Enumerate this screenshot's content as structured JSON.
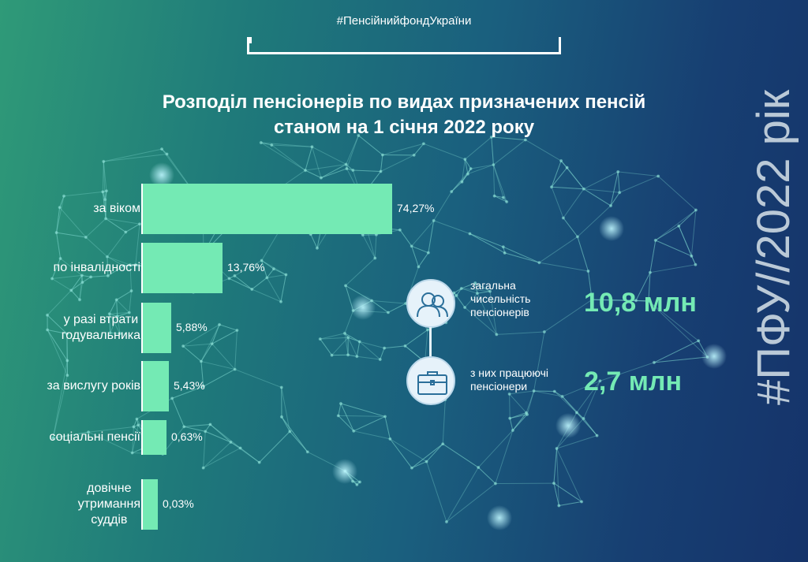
{
  "hashtag": "#ПенсійнийфондУкраїни",
  "title_lines": [
    "Розподіл пенсіонерів по видах призначених пенсій",
    "станом на 1 січня 2022 року"
  ],
  "chart_data": {
    "type": "bar",
    "orientation": "horizontal",
    "title": "Розподіл пенсіонерів по видах призначених пенсій станом на 1 січня 2022 року",
    "categories": [
      "за віком",
      "по інвалідності",
      "у разі втрати годувальника",
      "за вислугу років",
      "соціальні пенсії",
      "довічне утримання суддів"
    ],
    "category_lines": [
      [
        "за віком"
      ],
      [
        "по інвалідності"
      ],
      [
        "у разі втрати",
        "годувальника"
      ],
      [
        "за вислугу років"
      ],
      [
        "соціальні пенсії"
      ],
      [
        "довічне",
        "утримання",
        "суддів"
      ]
    ],
    "values": [
      74.27,
      13.76,
      5.88,
      5.43,
      0.63,
      0.03
    ],
    "data_labels": [
      "74,27%",
      "13,76%",
      "5,88%",
      "5,43%",
      "0,63%",
      "0,03%"
    ],
    "unit": "%",
    "grid": false,
    "legend": "none",
    "bar_color": "#74eab4"
  },
  "stats": [
    {
      "icon": "people-icon",
      "label_lines": [
        "загальна",
        "чисельність",
        "пенсіонерів"
      ],
      "value": "10,8 млн"
    },
    {
      "icon": "briefcase-icon",
      "label_lines": [
        "з них працюючі",
        "пенсіонери"
      ],
      "value": "2,7 млн"
    }
  ],
  "vertical_tag": "#ПФУ//2022 рік",
  "colors": {
    "accent": "#74eab4",
    "text": "#ffffff",
    "circle_fill": "#e6f2fa",
    "icon_stroke": "#2b6f9a"
  }
}
